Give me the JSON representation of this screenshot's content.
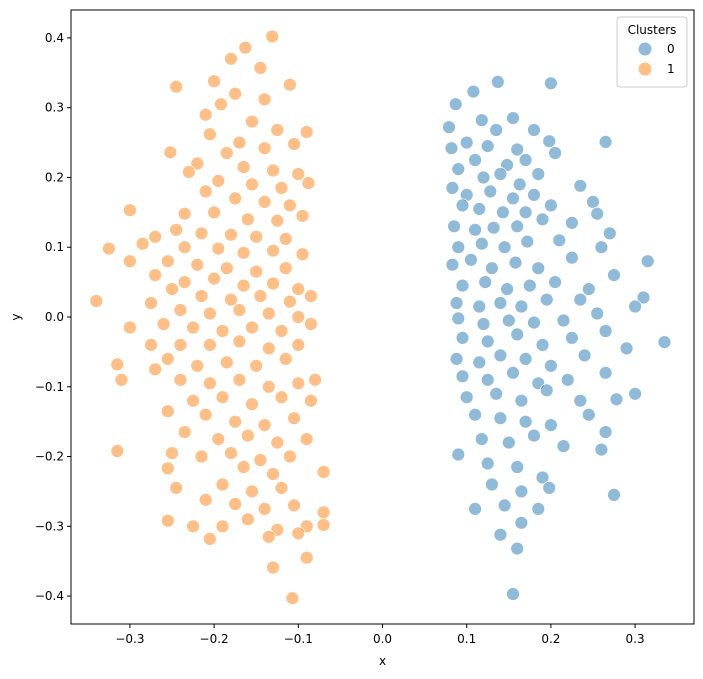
{
  "chart_data": {
    "type": "scatter",
    "title": "",
    "xlabel": "x",
    "ylabel": "y",
    "xlim": [
      -0.37,
      0.37
    ],
    "ylim": [
      -0.44,
      0.44
    ],
    "x_ticks": [
      -0.3,
      -0.2,
      -0.1,
      0.0,
      0.1,
      0.2,
      0.3
    ],
    "x_tick_labels": [
      "−0.3",
      "−0.2",
      "−0.1",
      "0.0",
      "0.1",
      "0.2",
      "0.3"
    ],
    "y_ticks": [
      -0.4,
      -0.3,
      -0.2,
      -0.1,
      0.0,
      0.1,
      0.2,
      0.3,
      0.4
    ],
    "y_tick_labels": [
      "−0.4",
      "−0.3",
      "−0.2",
      "−0.1",
      "0.0",
      "0.1",
      "0.2",
      "0.3",
      "0.4"
    ],
    "grid": false,
    "legend": {
      "title": "Clusters",
      "placement": "top-right"
    },
    "series": [
      {
        "name": "0",
        "color": "#1f77b4",
        "points": [
          [
            0.2,
            0.335
          ],
          [
            0.137,
            0.337
          ],
          [
            0.108,
            0.323
          ],
          [
            0.087,
            0.305
          ],
          [
            0.155,
            0.285
          ],
          [
            0.079,
            0.272
          ],
          [
            0.118,
            0.282
          ],
          [
            0.135,
            0.268
          ],
          [
            0.18,
            0.268
          ],
          [
            0.265,
            0.251
          ],
          [
            0.082,
            0.242
          ],
          [
            0.1,
            0.25
          ],
          [
            0.125,
            0.245
          ],
          [
            0.16,
            0.24
          ],
          [
            0.198,
            0.252
          ],
          [
            0.11,
            0.225
          ],
          [
            0.148,
            0.218
          ],
          [
            0.17,
            0.225
          ],
          [
            0.205,
            0.235
          ],
          [
            0.09,
            0.212
          ],
          [
            0.12,
            0.2
          ],
          [
            0.14,
            0.205
          ],
          [
            0.163,
            0.19
          ],
          [
            0.185,
            0.205
          ],
          [
            0.083,
            0.185
          ],
          [
            0.1,
            0.175
          ],
          [
            0.128,
            0.18
          ],
          [
            0.155,
            0.17
          ],
          [
            0.18,
            0.175
          ],
          [
            0.235,
            0.188
          ],
          [
            0.095,
            0.16
          ],
          [
            0.115,
            0.155
          ],
          [
            0.143,
            0.15
          ],
          [
            0.17,
            0.15
          ],
          [
            0.2,
            0.16
          ],
          [
            0.25,
            0.165
          ],
          [
            0.085,
            0.13
          ],
          [
            0.11,
            0.125
          ],
          [
            0.132,
            0.128
          ],
          [
            0.16,
            0.13
          ],
          [
            0.19,
            0.14
          ],
          [
            0.225,
            0.135
          ],
          [
            0.255,
            0.148
          ],
          [
            0.09,
            0.1
          ],
          [
            0.118,
            0.105
          ],
          [
            0.145,
            0.1
          ],
          [
            0.172,
            0.108
          ],
          [
            0.21,
            0.11
          ],
          [
            0.26,
            0.1
          ],
          [
            0.27,
            0.12
          ],
          [
            0.083,
            0.075
          ],
          [
            0.105,
            0.082
          ],
          [
            0.13,
            0.07
          ],
          [
            0.158,
            0.078
          ],
          [
            0.185,
            0.07
          ],
          [
            0.225,
            0.085
          ],
          [
            0.315,
            0.08
          ],
          [
            0.095,
            0.045
          ],
          [
            0.122,
            0.05
          ],
          [
            0.148,
            0.04
          ],
          [
            0.175,
            0.045
          ],
          [
            0.205,
            0.05
          ],
          [
            0.245,
            0.04
          ],
          [
            0.275,
            0.06
          ],
          [
            0.088,
            0.02
          ],
          [
            0.115,
            0.015
          ],
          [
            0.14,
            0.02
          ],
          [
            0.165,
            0.015
          ],
          [
            0.195,
            0.025
          ],
          [
            0.235,
            0.025
          ],
          [
            0.31,
            0.028
          ],
          [
            0.09,
            -0.002
          ],
          [
            0.12,
            -0.01
          ],
          [
            0.15,
            -0.005
          ],
          [
            0.18,
            -0.008
          ],
          [
            0.215,
            -0.005
          ],
          [
            0.255,
            0.005
          ],
          [
            0.3,
            0.015
          ],
          [
            0.095,
            -0.03
          ],
          [
            0.125,
            -0.035
          ],
          [
            0.16,
            -0.025
          ],
          [
            0.19,
            -0.04
          ],
          [
            0.225,
            -0.03
          ],
          [
            0.265,
            -0.02
          ],
          [
            0.335,
            -0.036
          ],
          [
            0.088,
            -0.06
          ],
          [
            0.115,
            -0.065
          ],
          [
            0.14,
            -0.055
          ],
          [
            0.17,
            -0.06
          ],
          [
            0.2,
            -0.07
          ],
          [
            0.24,
            -0.055
          ],
          [
            0.29,
            -0.045
          ],
          [
            0.095,
            -0.085
          ],
          [
            0.125,
            -0.09
          ],
          [
            0.155,
            -0.08
          ],
          [
            0.185,
            -0.095
          ],
          [
            0.22,
            -0.09
          ],
          [
            0.265,
            -0.08
          ],
          [
            0.1,
            -0.115
          ],
          [
            0.135,
            -0.11
          ],
          [
            0.165,
            -0.12
          ],
          [
            0.195,
            -0.105
          ],
          [
            0.235,
            -0.12
          ],
          [
            0.278,
            -0.118
          ],
          [
            0.3,
            -0.11
          ],
          [
            0.11,
            -0.14
          ],
          [
            0.14,
            -0.145
          ],
          [
            0.17,
            -0.15
          ],
          [
            0.2,
            -0.155
          ],
          [
            0.245,
            -0.14
          ],
          [
            0.09,
            -0.197
          ],
          [
            0.118,
            -0.175
          ],
          [
            0.15,
            -0.18
          ],
          [
            0.18,
            -0.17
          ],
          [
            0.215,
            -0.185
          ],
          [
            0.265,
            -0.165
          ],
          [
            0.125,
            -0.21
          ],
          [
            0.16,
            -0.215
          ],
          [
            0.19,
            -0.23
          ],
          [
            0.26,
            -0.19
          ],
          [
            0.13,
            -0.24
          ],
          [
            0.165,
            -0.25
          ],
          [
            0.198,
            -0.245
          ],
          [
            0.11,
            -0.275
          ],
          [
            0.145,
            -0.27
          ],
          [
            0.185,
            -0.275
          ],
          [
            0.275,
            -0.255
          ],
          [
            0.165,
            -0.295
          ],
          [
            0.14,
            -0.312
          ],
          [
            0.16,
            -0.332
          ],
          [
            0.155,
            -0.397
          ]
        ]
      },
      {
        "name": "1",
        "color": "#ff7f0e",
        "points": [
          [
            -0.131,
            0.402
          ],
          [
            -0.163,
            0.386
          ],
          [
            -0.18,
            0.37
          ],
          [
            -0.145,
            0.357
          ],
          [
            -0.11,
            0.333
          ],
          [
            -0.2,
            0.338
          ],
          [
            -0.245,
            0.33
          ],
          [
            -0.175,
            0.32
          ],
          [
            -0.14,
            0.312
          ],
          [
            -0.192,
            0.305
          ],
          [
            -0.21,
            0.29
          ],
          [
            -0.155,
            0.28
          ],
          [
            -0.125,
            0.268
          ],
          [
            -0.09,
            0.265
          ],
          [
            -0.205,
            0.262
          ],
          [
            -0.17,
            0.25
          ],
          [
            -0.14,
            0.242
          ],
          [
            -0.105,
            0.248
          ],
          [
            -0.185,
            0.235
          ],
          [
            -0.252,
            0.236
          ],
          [
            -0.22,
            0.22
          ],
          [
            -0.165,
            0.215
          ],
          [
            -0.13,
            0.21
          ],
          [
            -0.1,
            0.205
          ],
          [
            -0.23,
            0.208
          ],
          [
            -0.195,
            0.195
          ],
          [
            -0.155,
            0.19
          ],
          [
            -0.12,
            0.185
          ],
          [
            -0.088,
            0.192
          ],
          [
            -0.21,
            0.18
          ],
          [
            -0.175,
            0.17
          ],
          [
            -0.14,
            0.165
          ],
          [
            -0.11,
            0.16
          ],
          [
            -0.3,
            0.153
          ],
          [
            -0.235,
            0.148
          ],
          [
            -0.2,
            0.15
          ],
          [
            -0.16,
            0.14
          ],
          [
            -0.125,
            0.138
          ],
          [
            -0.095,
            0.145
          ],
          [
            -0.245,
            0.125
          ],
          [
            -0.215,
            0.12
          ],
          [
            -0.18,
            0.118
          ],
          [
            -0.15,
            0.115
          ],
          [
            -0.115,
            0.112
          ],
          [
            -0.27,
            0.115
          ],
          [
            -0.325,
            0.098
          ],
          [
            -0.235,
            0.1
          ],
          [
            -0.195,
            0.098
          ],
          [
            -0.165,
            0.092
          ],
          [
            -0.13,
            0.095
          ],
          [
            -0.095,
            0.09
          ],
          [
            -0.285,
            0.105
          ],
          [
            -0.255,
            0.08
          ],
          [
            -0.22,
            0.075
          ],
          [
            -0.185,
            0.07
          ],
          [
            -0.15,
            0.065
          ],
          [
            -0.115,
            0.07
          ],
          [
            -0.3,
            0.08
          ],
          [
            -0.27,
            0.06
          ],
          [
            -0.235,
            0.05
          ],
          [
            -0.2,
            0.055
          ],
          [
            -0.165,
            0.045
          ],
          [
            -0.13,
            0.048
          ],
          [
            -0.1,
            0.04
          ],
          [
            -0.25,
            0.04
          ],
          [
            -0.215,
            0.03
          ],
          [
            -0.18,
            0.025
          ],
          [
            -0.145,
            0.03
          ],
          [
            -0.11,
            0.022
          ],
          [
            -0.085,
            0.03
          ],
          [
            -0.34,
            0.023
          ],
          [
            -0.275,
            0.02
          ],
          [
            -0.24,
            0.01
          ],
          [
            -0.205,
            0.005
          ],
          [
            -0.17,
            0.01
          ],
          [
            -0.135,
            0.005
          ],
          [
            -0.1,
            0.0
          ],
          [
            -0.26,
            -0.01
          ],
          [
            -0.225,
            -0.015
          ],
          [
            -0.19,
            -0.02
          ],
          [
            -0.155,
            -0.015
          ],
          [
            -0.12,
            -0.02
          ],
          [
            -0.085,
            -0.01
          ],
          [
            -0.3,
            -0.015
          ],
          [
            -0.24,
            -0.04
          ],
          [
            -0.205,
            -0.04
          ],
          [
            -0.17,
            -0.035
          ],
          [
            -0.135,
            -0.045
          ],
          [
            -0.1,
            -0.04
          ],
          [
            -0.275,
            -0.04
          ],
          [
            -0.315,
            -0.068
          ],
          [
            -0.255,
            -0.06
          ],
          [
            -0.22,
            -0.07
          ],
          [
            -0.185,
            -0.065
          ],
          [
            -0.15,
            -0.07
          ],
          [
            -0.115,
            -0.06
          ],
          [
            -0.08,
            -0.09
          ],
          [
            -0.24,
            -0.09
          ],
          [
            -0.205,
            -0.095
          ],
          [
            -0.17,
            -0.09
          ],
          [
            -0.135,
            -0.1
          ],
          [
            -0.1,
            -0.095
          ],
          [
            -0.31,
            -0.09
          ],
          [
            -0.27,
            -0.075
          ],
          [
            -0.225,
            -0.12
          ],
          [
            -0.19,
            -0.115
          ],
          [
            -0.155,
            -0.125
          ],
          [
            -0.12,
            -0.115
          ],
          [
            -0.085,
            -0.12
          ],
          [
            -0.255,
            -0.135
          ],
          [
            -0.21,
            -0.14
          ],
          [
            -0.175,
            -0.15
          ],
          [
            -0.14,
            -0.155
          ],
          [
            -0.105,
            -0.145
          ],
          [
            -0.235,
            -0.165
          ],
          [
            -0.195,
            -0.175
          ],
          [
            -0.16,
            -0.17
          ],
          [
            -0.125,
            -0.18
          ],
          [
            -0.09,
            -0.175
          ],
          [
            -0.315,
            -0.192
          ],
          [
            -0.25,
            -0.195
          ],
          [
            -0.215,
            -0.2
          ],
          [
            -0.18,
            -0.195
          ],
          [
            -0.145,
            -0.205
          ],
          [
            -0.11,
            -0.2
          ],
          [
            -0.165,
            -0.215
          ],
          [
            -0.13,
            -0.225
          ],
          [
            -0.07,
            -0.222
          ],
          [
            -0.255,
            -0.217
          ],
          [
            -0.19,
            -0.24
          ],
          [
            -0.155,
            -0.25
          ],
          [
            -0.12,
            -0.245
          ],
          [
            -0.245,
            -0.245
          ],
          [
            -0.21,
            -0.262
          ],
          [
            -0.175,
            -0.268
          ],
          [
            -0.14,
            -0.275
          ],
          [
            -0.105,
            -0.27
          ],
          [
            -0.07,
            -0.28
          ],
          [
            -0.255,
            -0.292
          ],
          [
            -0.225,
            -0.3
          ],
          [
            -0.19,
            -0.3
          ],
          [
            -0.16,
            -0.29
          ],
          [
            -0.125,
            -0.305
          ],
          [
            -0.09,
            -0.3
          ],
          [
            -0.205,
            -0.318
          ],
          [
            -0.135,
            -0.315
          ],
          [
            -0.1,
            -0.31
          ],
          [
            -0.07,
            -0.298
          ],
          [
            -0.09,
            -0.345
          ],
          [
            -0.13,
            -0.359
          ],
          [
            -0.107,
            -0.403
          ]
        ]
      }
    ]
  }
}
